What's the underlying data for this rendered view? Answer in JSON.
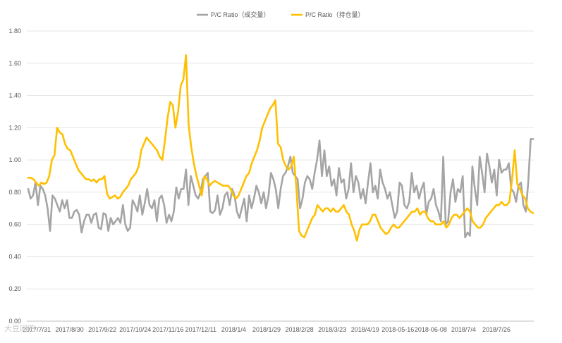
{
  "chart_data": {
    "type": "line",
    "ylim": [
      0,
      1.8
    ],
    "y_ticks": [
      "0.00",
      "0.20",
      "0.40",
      "0.60",
      "0.80",
      "1.00",
      "1.20",
      "1.40",
      "1.60",
      "1.80"
    ],
    "x_tick_labels": [
      "2017/7/31",
      "2017/8/30",
      "2017/9/22",
      "2017/10/24",
      "2017/11/16",
      "2017/12/11",
      "2018/1/4",
      "2018/1/29",
      "2018/2/28",
      "2018/3/23",
      "2018/4/19",
      "2018-05-16",
      "2018-06-08",
      "2018/7/4",
      "2018/7/26"
    ],
    "grid": true,
    "legend_position": "top",
    "series": [
      {
        "name": "P/C Ratio（成交量）",
        "color": "#a5a5a5",
        "values": [
          0.82,
          0.76,
          0.78,
          0.86,
          0.72,
          0.84,
          0.82,
          0.78,
          0.7,
          0.56,
          0.78,
          0.76,
          0.72,
          0.68,
          0.75,
          0.7,
          0.75,
          0.64,
          0.64,
          0.68,
          0.69,
          0.66,
          0.55,
          0.62,
          0.66,
          0.66,
          0.61,
          0.66,
          0.67,
          0.58,
          0.57,
          0.67,
          0.66,
          0.56,
          0.64,
          0.6,
          0.62,
          0.64,
          0.61,
          0.72,
          0.6,
          0.56,
          0.58,
          0.75,
          0.72,
          0.68,
          0.78,
          0.66,
          0.73,
          0.82,
          0.72,
          0.7,
          0.75,
          0.62,
          0.76,
          0.78,
          0.72,
          0.61,
          0.66,
          0.62,
          0.68,
          0.83,
          0.76,
          0.82,
          0.82,
          0.94,
          0.72,
          0.9,
          0.84,
          0.78,
          0.76,
          0.8,
          0.88,
          0.9,
          0.92,
          0.68,
          0.67,
          0.69,
          0.78,
          0.66,
          0.7,
          0.78,
          0.8,
          0.72,
          0.82,
          0.78,
          0.68,
          0.64,
          0.7,
          0.76,
          0.62,
          0.78,
          0.7,
          0.76,
          0.84,
          0.8,
          0.73,
          0.8,
          0.7,
          0.78,
          0.92,
          0.88,
          0.82,
          0.7,
          0.82,
          0.9,
          0.92,
          0.96,
          1.02,
          0.92,
          0.9,
          0.88,
          0.7,
          0.76,
          0.86,
          0.9,
          0.88,
          0.82,
          0.92,
          1.0,
          1.12,
          0.9,
          1.06,
          0.9,
          0.96,
          0.84,
          0.88,
          0.78,
          0.95,
          0.86,
          0.88,
          0.76,
          0.82,
          0.98,
          0.8,
          0.9,
          0.86,
          0.76,
          0.82,
          0.73,
          0.86,
          0.98,
          0.8,
          0.84,
          0.76,
          0.94,
          0.86,
          0.82,
          0.76,
          0.8,
          0.72,
          0.64,
          0.68,
          0.86,
          0.84,
          0.72,
          0.7,
          0.74,
          0.92,
          0.8,
          0.84,
          0.76,
          0.82,
          0.86,
          0.66,
          0.74,
          0.76,
          0.82,
          0.72,
          0.68,
          0.62,
          1.02,
          0.6,
          0.62,
          0.8,
          0.88,
          0.74,
          0.82,
          0.8,
          0.9,
          0.52,
          0.55,
          0.53,
          0.96,
          0.82,
          0.72,
          1.02,
          0.92,
          0.8,
          1.04,
          0.96,
          0.86,
          0.94,
          0.78,
          1.0,
          0.92,
          0.94,
          0.94,
          0.98,
          0.82,
          0.8,
          0.74,
          0.84,
          0.86,
          0.72,
          0.68,
          0.86,
          1.13,
          1.13
        ]
      },
      {
        "name": "P/C Ratio（持仓量）",
        "color": "#ffc000",
        "values": [
          0.89,
          0.89,
          0.88,
          0.86,
          0.84,
          0.86,
          0.85,
          0.86,
          0.9,
          1.0,
          1.03,
          1.2,
          1.17,
          1.16,
          1.1,
          1.07,
          1.06,
          1.02,
          0.98,
          0.94,
          0.92,
          0.9,
          0.88,
          0.88,
          0.87,
          0.88,
          0.86,
          0.88,
          0.88,
          0.9,
          0.79,
          0.76,
          0.77,
          0.78,
          0.76,
          0.77,
          0.8,
          0.82,
          0.84,
          0.88,
          0.9,
          0.92,
          0.96,
          1.06,
          1.1,
          1.14,
          1.12,
          1.1,
          1.08,
          1.06,
          1.02,
          1.0,
          1.12,
          1.26,
          1.36,
          1.34,
          1.2,
          1.3,
          1.46,
          1.5,
          1.65,
          1.22,
          1.08,
          0.98,
          0.9,
          0.84,
          0.78,
          0.9,
          0.88,
          0.84,
          0.86,
          0.87,
          0.86,
          0.85,
          0.84,
          0.84,
          0.84,
          0.82,
          0.78,
          0.76,
          0.78,
          0.82,
          0.86,
          0.9,
          0.92,
          0.98,
          1.02,
          1.06,
          1.12,
          1.2,
          1.24,
          1.28,
          1.32,
          1.34,
          1.37,
          1.1,
          1.08,
          1.0,
          0.96,
          0.94,
          0.96,
          1.02,
          0.82,
          0.56,
          0.53,
          0.52,
          0.56,
          0.6,
          0.64,
          0.66,
          0.72,
          0.7,
          0.68,
          0.7,
          0.7,
          0.68,
          0.7,
          0.68,
          0.68,
          0.7,
          0.72,
          0.68,
          0.66,
          0.6,
          0.56,
          0.5,
          0.57,
          0.6,
          0.6,
          0.6,
          0.62,
          0.66,
          0.66,
          0.62,
          0.58,
          0.56,
          0.54,
          0.55,
          0.58,
          0.6,
          0.58,
          0.58,
          0.6,
          0.62,
          0.64,
          0.66,
          0.68,
          0.68,
          0.7,
          0.66,
          0.68,
          0.68,
          0.64,
          0.62,
          0.62,
          0.6,
          0.6,
          0.6,
          0.62,
          0.58,
          0.6,
          0.64,
          0.66,
          0.66,
          0.64,
          0.66,
          0.68,
          0.7,
          0.68,
          0.62,
          0.6,
          0.58,
          0.58,
          0.6,
          0.64,
          0.66,
          0.68,
          0.7,
          0.72,
          0.72,
          0.74,
          0.72,
          0.72,
          0.74,
          0.88,
          1.06,
          0.85,
          0.82,
          0.78,
          0.76,
          0.7,
          0.68,
          0.67
        ]
      }
    ]
  },
  "watermark_text": "大豆网吧"
}
